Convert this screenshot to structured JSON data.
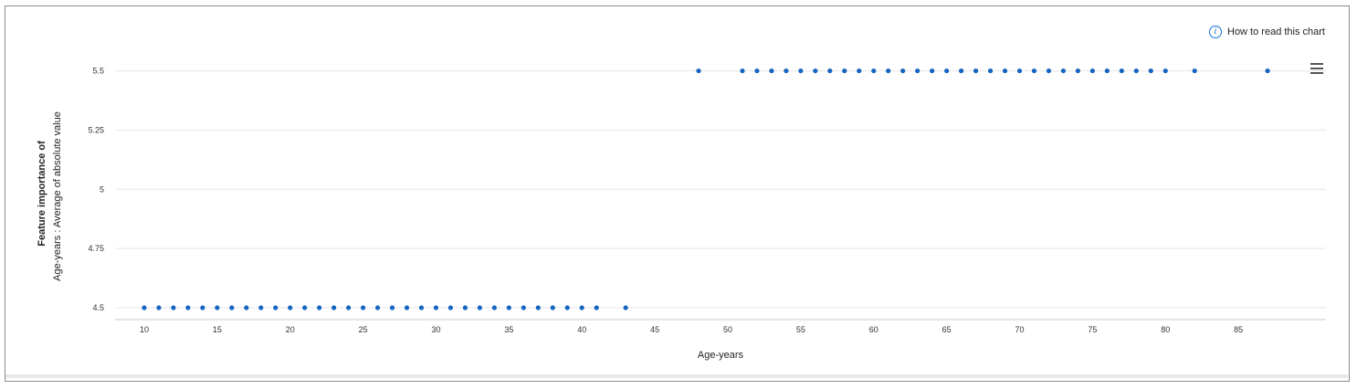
{
  "help": {
    "label": "How to read this chart",
    "icon": "info-icon"
  },
  "menu": {
    "icon": "hamburger-menu-icon"
  },
  "colors": {
    "point": "#1565c0",
    "grid": "#e6e6e6",
    "axis": "#c8c8c8"
  },
  "chart_data": {
    "type": "scatter",
    "xlabel": "Age-years",
    "ylabel_line1": "Feature importance of",
    "ylabel_line2": "Age-years : Average of absolute value",
    "xlim": [
      8,
      91
    ],
    "ylim": [
      4.45,
      5.56
    ],
    "xticks": [
      10,
      15,
      20,
      25,
      30,
      35,
      40,
      45,
      50,
      55,
      60,
      65,
      70,
      75,
      80,
      85
    ],
    "yticks": [
      4.5,
      4.75,
      5,
      5.25,
      5.5
    ],
    "ytick_labels": [
      "4.5",
      "4.75",
      "5",
      "5.25",
      "5.5"
    ],
    "grid": true,
    "points": [
      [
        10,
        4.5
      ],
      [
        11,
        4.5
      ],
      [
        12,
        4.5
      ],
      [
        13,
        4.5
      ],
      [
        14,
        4.5
      ],
      [
        15,
        4.5
      ],
      [
        16,
        4.5
      ],
      [
        17,
        4.5
      ],
      [
        18,
        4.5
      ],
      [
        19,
        4.5
      ],
      [
        20,
        4.5
      ],
      [
        21,
        4.5
      ],
      [
        22,
        4.5
      ],
      [
        23,
        4.5
      ],
      [
        24,
        4.5
      ],
      [
        25,
        4.5
      ],
      [
        26,
        4.5
      ],
      [
        27,
        4.5
      ],
      [
        28,
        4.5
      ],
      [
        29,
        4.5
      ],
      [
        30,
        4.5
      ],
      [
        31,
        4.5
      ],
      [
        32,
        4.5
      ],
      [
        33,
        4.5
      ],
      [
        34,
        4.5
      ],
      [
        35,
        4.5
      ],
      [
        36,
        4.5
      ],
      [
        37,
        4.5
      ],
      [
        38,
        4.5
      ],
      [
        39,
        4.5
      ],
      [
        40,
        4.5
      ],
      [
        41,
        4.5
      ],
      [
        43,
        4.5
      ],
      [
        48,
        5.5
      ],
      [
        51,
        5.5
      ],
      [
        52,
        5.5
      ],
      [
        53,
        5.5
      ],
      [
        54,
        5.5
      ],
      [
        55,
        5.5
      ],
      [
        56,
        5.5
      ],
      [
        57,
        5.5
      ],
      [
        58,
        5.5
      ],
      [
        59,
        5.5
      ],
      [
        60,
        5.5
      ],
      [
        61,
        5.5
      ],
      [
        62,
        5.5
      ],
      [
        63,
        5.5
      ],
      [
        64,
        5.5
      ],
      [
        65,
        5.5
      ],
      [
        66,
        5.5
      ],
      [
        67,
        5.5
      ],
      [
        68,
        5.5
      ],
      [
        69,
        5.5
      ],
      [
        70,
        5.5
      ],
      [
        71,
        5.5
      ],
      [
        72,
        5.5
      ],
      [
        73,
        5.5
      ],
      [
        74,
        5.5
      ],
      [
        75,
        5.5
      ],
      [
        76,
        5.5
      ],
      [
        77,
        5.5
      ],
      [
        78,
        5.5
      ],
      [
        79,
        5.5
      ],
      [
        80,
        5.5
      ],
      [
        82,
        5.5
      ],
      [
        87,
        5.5
      ]
    ]
  }
}
